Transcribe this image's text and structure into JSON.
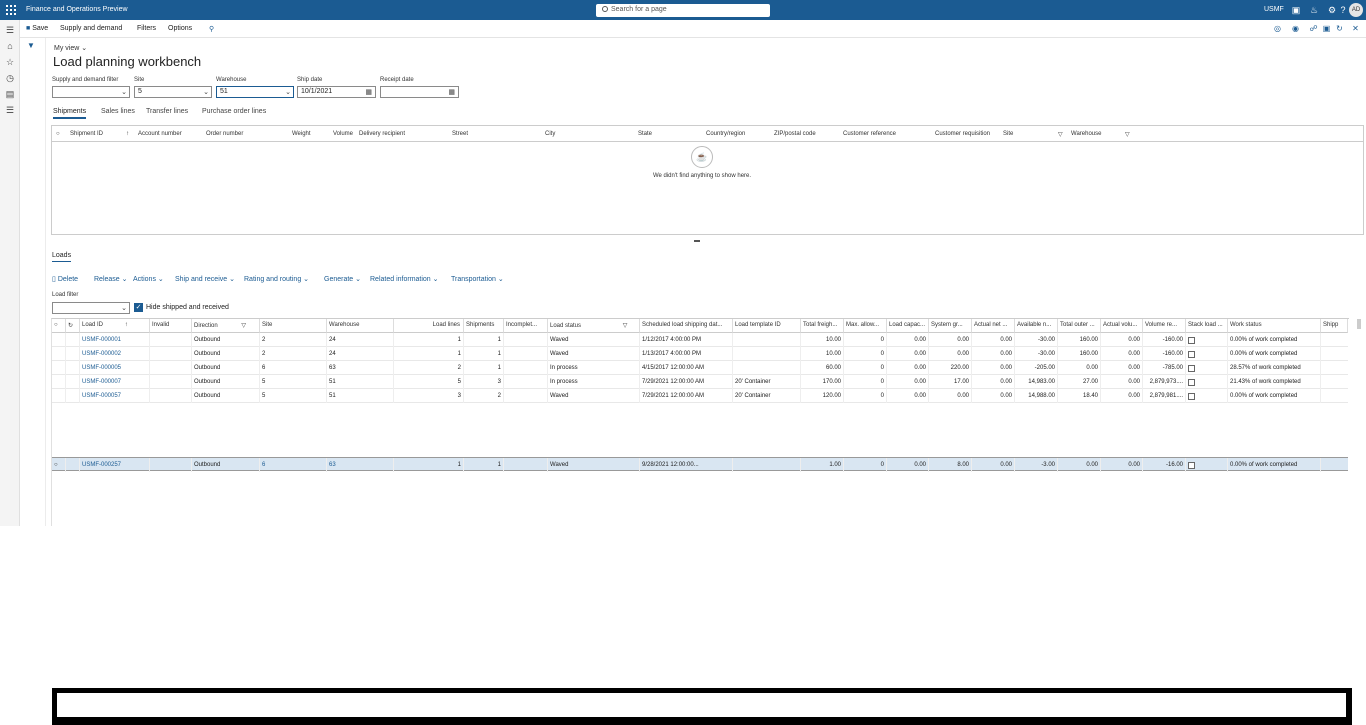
{
  "app": {
    "title": "Finance and Operations Preview",
    "search_placeholder": "Search for a page",
    "company": "USMF",
    "avatar": "AD"
  },
  "actionbar": {
    "save": "Save",
    "supply": "Supply and demand",
    "filters": "Filters",
    "options": "Options"
  },
  "page": {
    "myview": "My view",
    "title": "Load planning workbench"
  },
  "filters": {
    "sd_label": "Supply and demand filter",
    "sd_value": "",
    "site_label": "Site",
    "site_value": "5",
    "wh_label": "Warehouse",
    "wh_value": "51",
    "ship_label": "Ship date",
    "ship_value": "10/1/2021",
    "receipt_label": "Receipt date",
    "receipt_value": ""
  },
  "tabs": [
    "Shipments",
    "Sales lines",
    "Transfer lines",
    "Purchase order lines"
  ],
  "shipments_grid": {
    "headers": [
      "Shipment ID",
      "Account number",
      "Order number",
      "Weight",
      "Volume",
      "Delivery recipient",
      "Street",
      "City",
      "State",
      "Country/region",
      "ZIP/postal code",
      "Customer reference",
      "Customer requisition",
      "Site",
      "Warehouse"
    ],
    "empty_message": "We didn't find anything to show here."
  },
  "loads": {
    "title": "Loads",
    "actions": [
      "Delete",
      "Release",
      "Actions",
      "Ship and receive",
      "Rating and routing",
      "Generate",
      "Related information",
      "Transportation"
    ],
    "filter_label": "Load filter",
    "hide_label": "Hide shipped and received",
    "headers": [
      "Load ID",
      "Invalid",
      "Direction",
      "Site",
      "Warehouse",
      "Load lines",
      "Shipments",
      "Incomplet...",
      "Load status",
      "Scheduled load shipping dat...",
      "Load template ID",
      "Total freigh...",
      "Max. allow...",
      "Load capac...",
      "System gr...",
      "Actual net ...",
      "Available n...",
      "Total outer ...",
      "Actual volu...",
      "Volume re...",
      "Stack load ...",
      "Work status",
      "Shipp"
    ],
    "rows": [
      {
        "id": "USMF-000001",
        "dir": "Outbound",
        "site": "2",
        "wh": "24",
        "lines": "1",
        "ship": "1",
        "status": "Waved",
        "date": "1/12/2017 4:00:00 PM",
        "tmpl": "",
        "freight": "10.00",
        "max": "0",
        "cap": "0.00",
        "sys": "0.00",
        "net": "0.00",
        "avail": "-30.00",
        "outer": "160.00",
        "vol": "0.00",
        "volre": "-160.00",
        "stack": "",
        "work": "0.00% of work completed"
      },
      {
        "id": "USMF-000002",
        "dir": "Outbound",
        "site": "2",
        "wh": "24",
        "lines": "1",
        "ship": "1",
        "status": "Waved",
        "date": "1/13/2017 4:00:00 PM",
        "tmpl": "",
        "freight": "10.00",
        "max": "0",
        "cap": "0.00",
        "sys": "0.00",
        "net": "0.00",
        "avail": "-30.00",
        "outer": "160.00",
        "vol": "0.00",
        "volre": "-160.00",
        "stack": "",
        "work": "0.00% of work completed"
      },
      {
        "id": "USMF-000005",
        "dir": "Outbound",
        "site": "6",
        "wh": "63",
        "lines": "2",
        "ship": "1",
        "status": "In process",
        "date": "4/15/2017 12:00:00 AM",
        "tmpl": "",
        "freight": "60.00",
        "max": "0",
        "cap": "0.00",
        "sys": "220.00",
        "net": "0.00",
        "avail": "-205.00",
        "outer": "0.00",
        "vol": "0.00",
        "volre": "-785.00",
        "stack": "",
        "work": "28.57% of work completed"
      },
      {
        "id": "USMF-000007",
        "dir": "Outbound",
        "site": "5",
        "wh": "51",
        "lines": "5",
        "ship": "3",
        "status": "In process",
        "date": "7/29/2021 12:00:00 AM",
        "tmpl": "20' Container",
        "freight": "170.00",
        "max": "0",
        "cap": "0.00",
        "sys": "17.00",
        "net": "0.00",
        "avail": "14,983.00",
        "outer": "27.00",
        "vol": "0.00",
        "volre": "2,879,973....",
        "stack": "",
        "work": "21.43% of work completed"
      },
      {
        "id": "USMF-000057",
        "dir": "Outbound",
        "site": "5",
        "wh": "51",
        "lines": "3",
        "ship": "2",
        "status": "Waved",
        "date": "7/29/2021 12:00:00 AM",
        "tmpl": "20' Container",
        "freight": "120.00",
        "max": "0",
        "cap": "0.00",
        "sys": "0.00",
        "net": "0.00",
        "avail": "14,988.00",
        "outer": "18.40",
        "vol": "0.00",
        "volre": "2,879,981....",
        "stack": "",
        "work": "0.00% of work completed"
      }
    ],
    "selected": {
      "id": "USMF-000257",
      "dir": "Outbound",
      "site": "6",
      "wh": "63",
      "lines": "1",
      "ship": "1",
      "status": "Waved",
      "date": "9/28/2021 12:00:00...",
      "tmpl": "",
      "freight": "1.00",
      "max": "0",
      "cap": "0.00",
      "sys": "8.00",
      "net": "0.00",
      "avail": "-3.00",
      "outer": "0.00",
      "vol": "0.00",
      "volre": "-16.00",
      "stack": "",
      "work": "0.00% of work completed"
    }
  }
}
